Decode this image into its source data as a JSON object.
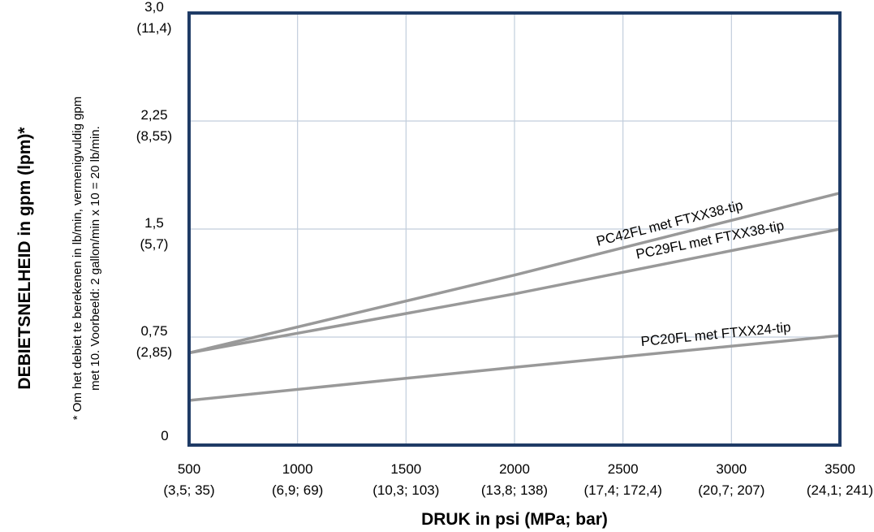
{
  "chart_data": {
    "type": "line",
    "xlabel": "DRUK in psi (MPa; bar)",
    "ylabel": "DEBIETSNELHEID in gpm (lpm)*",
    "footnote": {
      "line1": "* Om het debiet te berekenen in lb/min, vermenigvuldig gpm",
      "line2": "met 10. Voorbeeld: 2 gallon/min x 10 = 20 lb/min."
    },
    "xlim": [
      500,
      3500
    ],
    "ylim": [
      0,
      3.0
    ],
    "grid": true,
    "x_ticks": [
      {
        "value": 500,
        "label": "500",
        "sub": "(3,5; 35)"
      },
      {
        "value": 1000,
        "label": "1000",
        "sub": "(6,9; 69)"
      },
      {
        "value": 1500,
        "label": "1500",
        "sub": "(10,3; 103)"
      },
      {
        "value": 2000,
        "label": "2000",
        "sub": "(13,8; 138)"
      },
      {
        "value": 2500,
        "label": "2500",
        "sub": "(17,4; 172,4)"
      },
      {
        "value": 3000,
        "label": "3000",
        "sub": "(20,7; 207)"
      },
      {
        "value": 3500,
        "label": "3500",
        "sub": "(24,1; 241)"
      }
    ],
    "y_ticks": [
      {
        "value": 0,
        "label": "0",
        "sub": ""
      },
      {
        "value": 0.75,
        "label": "0,75",
        "sub": "(2,85)"
      },
      {
        "value": 1.5,
        "label": "1,5",
        "sub": "(5,7)"
      },
      {
        "value": 2.25,
        "label": "2,25",
        "sub": "(8,55)"
      },
      {
        "value": 3.0,
        "label": "3,0",
        "sub": "(11,4)"
      }
    ],
    "series": [
      {
        "name": "PC42FL met FTXX38-tip",
        "x": [
          500,
          2000,
          3500
        ],
        "y": [
          0.64,
          1.18,
          1.75
        ]
      },
      {
        "name": "PC29FL met FTXX38-tip",
        "x": [
          500,
          2000,
          3500
        ],
        "y": [
          0.64,
          1.05,
          1.5
        ]
      },
      {
        "name": "PC20FL met FTXX24-tip",
        "x": [
          500,
          2000,
          3500
        ],
        "y": [
          0.31,
          0.54,
          0.76
        ]
      }
    ],
    "colors": {
      "frame": "#1f3b66",
      "grid": "#c2cedc",
      "series": "#999999"
    }
  }
}
